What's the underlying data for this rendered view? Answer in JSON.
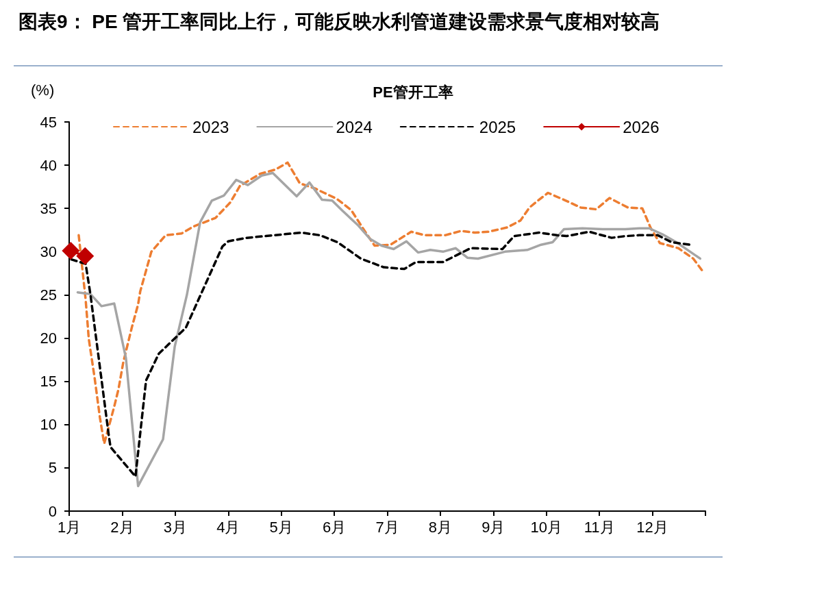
{
  "chart_data": {
    "type": "line",
    "title": "图表9： PE 管开工率同比上行，可能反映水利管道建设需求景气度相对较高",
    "subtitle": "PE管开工率",
    "ylabel": "(%)",
    "xlim": [
      1,
      13
    ],
    "xticks": [
      {
        "value": 1,
        "label": "1月"
      },
      {
        "value": 2,
        "label": "2月"
      },
      {
        "value": 3,
        "label": "3月"
      },
      {
        "value": 4,
        "label": "4月"
      },
      {
        "value": 5,
        "label": "5月"
      },
      {
        "value": 6,
        "label": "6月"
      },
      {
        "value": 7,
        "label": "7月"
      },
      {
        "value": 8,
        "label": "8月"
      },
      {
        "value": 9,
        "label": "9月"
      },
      {
        "value": 10,
        "label": "10月"
      },
      {
        "value": 11,
        "label": "11月"
      },
      {
        "value": 12,
        "label": "12月"
      },
      {
        "value": 13,
        "label": null
      }
    ],
    "ylim": [
      0,
      45
    ],
    "yticks": [
      0,
      5,
      10,
      15,
      20,
      25,
      30,
      35,
      40,
      45
    ],
    "grid": false,
    "legend": "top",
    "series": [
      {
        "name": "2023",
        "color": "#ed7d31",
        "line_style": "dashed",
        "marker": "none",
        "x": [
          1.18,
          1.31,
          1.37,
          1.48,
          1.58,
          1.66,
          1.78,
          1.85,
          1.93,
          2.02,
          2.18,
          2.3,
          2.34,
          2.55,
          2.82,
          3.12,
          3.34,
          3.76,
          4.04,
          4.22,
          4.6,
          4.89,
          5.12,
          5.35,
          5.64,
          5.81,
          6.05,
          6.32,
          6.54,
          6.76,
          7.06,
          7.45,
          7.71,
          8.09,
          8.39,
          8.65,
          8.91,
          9.26,
          9.51,
          9.68,
          9.86,
          10.03,
          10.33,
          10.65,
          10.94,
          11.19,
          11.54,
          11.81,
          11.97,
          12.14,
          12.49,
          12.77,
          12.94
        ],
        "values": [
          31.9,
          24.5,
          19.9,
          15.4,
          10.8,
          7.8,
          10.5,
          12.1,
          14.1,
          17.2,
          21.2,
          23.9,
          25.4,
          30.0,
          31.9,
          32.1,
          32.9,
          33.9,
          35.7,
          37.6,
          39.0,
          39.5,
          40.3,
          37.9,
          37.3,
          36.8,
          36.1,
          34.8,
          32.7,
          30.7,
          30.8,
          32.3,
          31.9,
          31.9,
          32.4,
          32.2,
          32.3,
          32.8,
          33.6,
          35.1,
          36.0,
          36.8,
          36.0,
          35.1,
          34.9,
          36.2,
          35.1,
          35.0,
          32.7,
          31.0,
          30.4,
          29.2,
          27.8
        ]
      },
      {
        "name": "2024",
        "color": "#a5a5a5",
        "line_style": "solid",
        "marker": "none",
        "x": [
          1.16,
          1.4,
          1.61,
          1.85,
          2.07,
          2.3,
          2.77,
          2.99,
          3.22,
          3.47,
          3.69,
          3.92,
          4.15,
          4.37,
          4.63,
          4.84,
          5.29,
          5.53,
          5.77,
          5.96,
          6.16,
          6.44,
          6.67,
          6.89,
          7.12,
          7.36,
          7.58,
          7.81,
          8.05,
          8.29,
          8.51,
          8.71,
          9.22,
          9.64,
          9.9,
          10.12,
          10.33,
          10.68,
          11.06,
          11.49,
          11.75,
          11.94,
          12.19,
          12.45,
          12.9
        ],
        "values": [
          25.3,
          25.1,
          23.7,
          24.0,
          17.7,
          2.9,
          8.3,
          19.0,
          25.0,
          33.4,
          35.9,
          36.5,
          38.3,
          37.7,
          38.8,
          39.1,
          36.4,
          38.0,
          36.0,
          35.9,
          34.7,
          33.1,
          31.5,
          30.7,
          30.3,
          31.2,
          29.9,
          30.2,
          30.0,
          30.4,
          29.3,
          29.2,
          30.0,
          30.2,
          30.8,
          31.1,
          32.6,
          32.7,
          32.6,
          32.6,
          32.7,
          32.7,
          32.0,
          31.1,
          29.2
        ]
      },
      {
        "name": "2025",
        "color": "#000000",
        "line_style": "dashed",
        "marker": "none",
        "x": [
          1.04,
          1.31,
          1.4,
          1.75,
          1.78,
          2.25,
          2.45,
          2.69,
          3.2,
          3.89,
          4.0,
          4.35,
          4.86,
          5.38,
          5.73,
          6.06,
          6.5,
          6.93,
          7.32,
          7.54,
          8.05,
          8.31,
          8.57,
          9.17,
          9.39,
          9.86,
          10.2,
          10.38,
          10.81,
          11.23,
          11.49,
          11.75,
          12.1,
          12.36,
          12.71
        ],
        "values": [
          29.1,
          28.6,
          25.1,
          8.6,
          7.4,
          4.0,
          15.1,
          18.2,
          21.2,
          30.6,
          31.2,
          31.6,
          31.9,
          32.2,
          31.9,
          31.1,
          29.2,
          28.2,
          28.0,
          28.8,
          28.8,
          29.6,
          30.4,
          30.3,
          31.8,
          32.2,
          31.9,
          31.8,
          32.3,
          31.6,
          31.8,
          31.9,
          31.9,
          31.1,
          30.8
        ]
      },
      {
        "name": "2026",
        "color": "#c00000",
        "line_style": "solid",
        "marker": "diamond",
        "x": [
          1.03,
          1.3
        ],
        "values": [
          30.1,
          29.5
        ]
      }
    ]
  }
}
